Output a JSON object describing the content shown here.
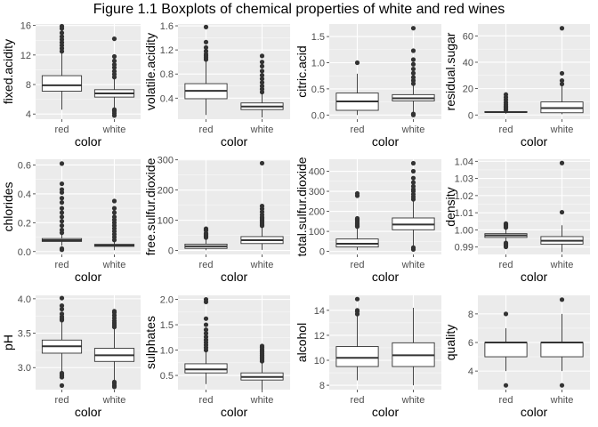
{
  "title": "Figure 1.1 Boxplots of chemical properties of white and red wines",
  "colors": {
    "panel": "#ebebeb",
    "grid_major": "#ffffff",
    "box_fill": "#ffffff",
    "ink": "#333333"
  },
  "chart_data": [
    {
      "type": "boxplot",
      "xlabel": "color",
      "ylabel": "fixed.acidity",
      "categories": [
        "red",
        "white"
      ],
      "yticks": [
        "4",
        "8",
        "12",
        "16"
      ],
      "yticks_v": [
        4,
        8,
        12,
        16
      ],
      "ylim": [
        3.3,
        16.2
      ],
      "boxes": [
        {
          "lw": 4.6,
          "q1": 7.1,
          "med": 7.9,
          "q3": 9.2,
          "uw": 12.3,
          "out": [
            12.5,
            12.9,
            13.3,
            13.7,
            14.1,
            14.5,
            15.0,
            15.6,
            15.9
          ]
        },
        {
          "lw": 4.8,
          "q1": 6.3,
          "med": 6.8,
          "q3": 7.3,
          "uw": 8.8,
          "out": [
            3.8,
            4.1,
            4.4,
            4.6,
            9.0,
            9.4,
            9.8,
            10.3,
            10.7,
            11.2,
            11.8,
            14.2
          ]
        }
      ]
    },
    {
      "type": "boxplot",
      "xlabel": "color",
      "ylabel": "volatile.acidity",
      "categories": [
        "red",
        "white"
      ],
      "yticks": [
        "0.4",
        "0.8",
        "1.2",
        "1.6"
      ],
      "yticks_v": [
        0.4,
        0.8,
        1.2,
        1.6
      ],
      "ylim": [
        0.05,
        1.63
      ],
      "boxes": [
        {
          "lw": 0.12,
          "q1": 0.39,
          "med": 0.52,
          "q3": 0.64,
          "uw": 1.01,
          "out": [
            1.04,
            1.07,
            1.1,
            1.13,
            1.18,
            1.24,
            1.33,
            1.58
          ]
        },
        {
          "lw": 0.08,
          "q1": 0.21,
          "med": 0.26,
          "q3": 0.32,
          "uw": 0.48,
          "out": [
            0.5,
            0.55,
            0.6,
            0.66,
            0.72,
            0.78,
            0.85,
            0.93,
            1.0,
            1.1
          ]
        }
      ]
    },
    {
      "type": "boxplot",
      "xlabel": "color",
      "ylabel": "citric.acid",
      "categories": [
        "red",
        "white"
      ],
      "yticks": [
        "0.0",
        "0.5",
        "1.0",
        "1.5"
      ],
      "yticks_v": [
        0,
        0.5,
        1.0,
        1.5
      ],
      "ylim": [
        -0.08,
        1.74
      ],
      "boxes": [
        {
          "lw": 0,
          "q1": 0.09,
          "med": 0.26,
          "q3": 0.42,
          "uw": 0.79,
          "out": [
            1.0
          ]
        },
        {
          "lw": 0.03,
          "q1": 0.27,
          "med": 0.32,
          "q3": 0.39,
          "uw": 0.56,
          "out": [
            0,
            0.01,
            0.02,
            0.6,
            0.66,
            0.72,
            0.8,
            0.88,
            0.97,
            1.06,
            1.23,
            1.66
          ]
        }
      ]
    },
    {
      "type": "boxplot",
      "xlabel": "color",
      "ylabel": "residual.sugar",
      "categories": [
        "red",
        "white"
      ],
      "yticks": [
        "0",
        "20",
        "40",
        "60"
      ],
      "yticks_v": [
        0,
        20,
        40,
        60
      ],
      "ylim": [
        -3.2,
        69
      ],
      "boxes": [
        {
          "lw": 0.9,
          "q1": 1.9,
          "med": 2.2,
          "q3": 2.6,
          "uw": 3.6,
          "out": [
            3.8,
            4.3,
            5.0,
            5.8,
            6.8,
            8.0,
            9.5,
            11.5,
            13.4,
            15.5
          ]
        },
        {
          "lw": 0.6,
          "q1": 1.7,
          "med": 5.2,
          "q3": 9.9,
          "uw": 22.0,
          "out": [
            23.5,
            26.1,
            31.6,
            65.8
          ]
        }
      ]
    },
    {
      "type": "boxplot",
      "xlabel": "color",
      "ylabel": "chlorides",
      "categories": [
        "red",
        "white"
      ],
      "yticks": [
        "0.0",
        "0.2",
        "0.4",
        "0.6"
      ],
      "yticks_v": [
        0,
        0.2,
        0.4,
        0.6
      ],
      "ylim": [
        -0.02,
        0.64
      ],
      "boxes": [
        {
          "lw": 0.04,
          "q1": 0.07,
          "med": 0.079,
          "q3": 0.09,
          "uw": 0.119,
          "out": [
            0.012,
            0.02,
            0.13,
            0.15,
            0.18,
            0.21,
            0.24,
            0.27,
            0.3,
            0.34,
            0.37,
            0.41,
            0.43,
            0.47,
            0.61
          ]
        },
        {
          "lw": 0.009,
          "q1": 0.036,
          "med": 0.043,
          "q3": 0.05,
          "uw": 0.071,
          "out": [
            0.08,
            0.1,
            0.12,
            0.14,
            0.16,
            0.18,
            0.2,
            0.22,
            0.24,
            0.27,
            0.3,
            0.35
          ]
        }
      ]
    },
    {
      "type": "boxplot",
      "xlabel": "color",
      "ylabel": "free.sulfur.dioxide",
      "categories": [
        "red",
        "white"
      ],
      "yticks": [
        "0",
        "100",
        "200",
        "300"
      ],
      "yticks_v": [
        0,
        100,
        200,
        300
      ],
      "ylim": [
        -13,
        302
      ],
      "boxes": [
        {
          "lw": 1,
          "q1": 7,
          "med": 14,
          "q3": 21,
          "uw": 42,
          "out": [
            43,
            46,
            48,
            51,
            54,
            57,
            66,
            68,
            72
          ]
        },
        {
          "lw": 2,
          "q1": 23,
          "med": 34,
          "q3": 46,
          "uw": 80,
          "out": [
            82,
            86,
            90,
            95,
            100,
            105,
            110,
            118,
            128,
            138,
            147,
            289
          ]
        }
      ]
    },
    {
      "type": "boxplot",
      "xlabel": "color",
      "ylabel": "total.sulfur.dioxide",
      "categories": [
        "red",
        "white"
      ],
      "yticks": [
        "0",
        "100",
        "200",
        "300",
        "400"
      ],
      "yticks_v": [
        0,
        100,
        200,
        300,
        400
      ],
      "ylim": [
        -15,
        460
      ],
      "boxes": [
        {
          "lw": 6,
          "q1": 22,
          "med": 38,
          "q3": 62,
          "uw": 122,
          "out": [
            124,
            128,
            134,
            140,
            147,
            155,
            160,
            165,
            278,
            289
          ]
        },
        {
          "lw": 18,
          "q1": 108,
          "med": 134,
          "q3": 167,
          "uw": 255,
          "out": [
            10,
            19,
            260,
            272,
            285,
            300,
            310,
            325,
            344,
            366,
            400,
            440
          ]
        }
      ]
    },
    {
      "type": "boxplot",
      "xlabel": "color",
      "ylabel": "density",
      "categories": [
        "red",
        "white"
      ],
      "yticks": [
        "0.99",
        "1.00",
        "1.01",
        "1.02",
        "1.03",
        "1.04"
      ],
      "yticks_v": [
        0.99,
        1.0,
        1.01,
        1.02,
        1.03,
        1.04
      ],
      "ylim": [
        0.9857,
        1.0412
      ],
      "boxes": [
        {
          "lw": 0.9935,
          "q1": 0.9956,
          "med": 0.9968,
          "q3": 0.9978,
          "uw": 1.001,
          "out": [
            0.9901,
            0.9908,
            0.9916,
            0.9924,
            1.0014,
            1.0021,
            1.0026,
            1.0032,
            1.0037
          ]
        },
        {
          "lw": 0.9871,
          "q1": 0.9917,
          "med": 0.9937,
          "q3": 0.9961,
          "uw": 1.0027,
          "out": [
            1.0103,
            1.039
          ]
        }
      ]
    },
    {
      "type": "boxplot",
      "xlabel": "color",
      "ylabel": "pH",
      "categories": [
        "red",
        "white"
      ],
      "yticks": [
        "3.0",
        "3.5",
        "4.0"
      ],
      "yticks_v": [
        3.0,
        3.5,
        4.0
      ],
      "ylim": [
        2.68,
        4.05
      ],
      "boxes": [
        {
          "lw": 2.94,
          "q1": 3.21,
          "med": 3.31,
          "q3": 3.4,
          "uw": 3.68,
          "out": [
            2.74,
            2.86,
            2.88,
            2.9,
            2.92,
            3.69,
            3.71,
            3.74,
            3.78,
            3.85,
            3.9,
            4.01
          ]
        },
        {
          "lw": 2.8,
          "q1": 3.09,
          "med": 3.18,
          "q3": 3.28,
          "uw": 3.57,
          "out": [
            2.72,
            2.74,
            2.77,
            2.79,
            3.59,
            3.62,
            3.65,
            3.68,
            3.72,
            3.76,
            3.8,
            3.82
          ]
        }
      ]
    },
    {
      "type": "boxplot",
      "xlabel": "color",
      "ylabel": "sulphates",
      "categories": [
        "red",
        "white"
      ],
      "yticks": [
        "0.5",
        "1.0",
        "1.5",
        "2.0"
      ],
      "yticks_v": [
        0.5,
        1.0,
        1.5,
        2.0
      ],
      "ylim": [
        0.22,
        2.08
      ],
      "boxes": [
        {
          "lw": 0.33,
          "q1": 0.55,
          "med": 0.62,
          "q3": 0.73,
          "uw": 0.98,
          "out": [
            1.0,
            1.05,
            1.1,
            1.15,
            1.2,
            1.26,
            1.33,
            1.4,
            1.5,
            1.62,
            1.95,
            2.0
          ]
        },
        {
          "lw": 0.22,
          "q1": 0.41,
          "med": 0.47,
          "q3": 0.55,
          "uw": 0.76,
          "out": [
            0.78,
            0.81,
            0.84,
            0.87,
            0.9,
            0.93,
            0.96,
            0.99,
            1.02,
            1.06,
            1.08
          ]
        }
      ]
    },
    {
      "type": "boxplot",
      "xlabel": "color",
      "ylabel": "alcohol",
      "categories": [
        "red",
        "white"
      ],
      "yticks": [
        "8",
        "10",
        "12",
        "14"
      ],
      "yticks_v": [
        8,
        10,
        12,
        14
      ],
      "ylim": [
        7.65,
        15.2
      ],
      "boxes": [
        {
          "lw": 8.4,
          "q1": 9.5,
          "med": 10.2,
          "q3": 11.1,
          "uw": 13.6,
          "out": [
            13.7,
            13.9,
            14.0,
            14.9
          ]
        },
        {
          "lw": 8.0,
          "q1": 9.5,
          "med": 10.4,
          "q3": 11.4,
          "uw": 14.2,
          "out": []
        }
      ]
    },
    {
      "type": "boxplot",
      "xlabel": "color",
      "ylabel": "quality",
      "categories": [
        "red",
        "white"
      ],
      "yticks": [
        "4",
        "6",
        "8"
      ],
      "yticks_v": [
        4,
        6,
        8
      ],
      "ylim": [
        2.7,
        9.3
      ],
      "boxes": [
        {
          "lw": 4,
          "q1": 5,
          "med": 6,
          "q3": 6,
          "uw": 7,
          "out": [
            3,
            8
          ]
        },
        {
          "lw": 4,
          "q1": 5,
          "med": 6,
          "q3": 6,
          "uw": 8,
          "out": [
            3,
            9
          ]
        }
      ]
    }
  ]
}
